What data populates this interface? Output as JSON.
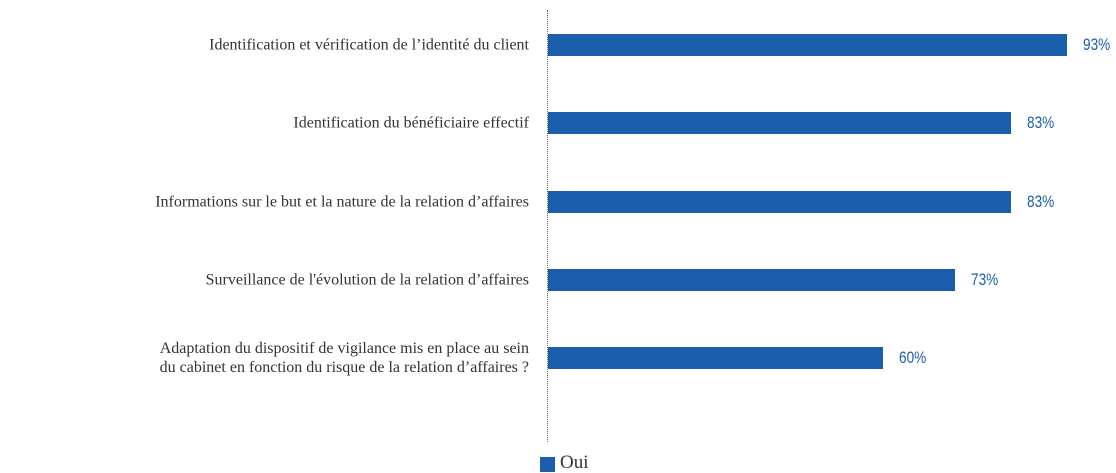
{
  "chart_data": {
    "type": "hbar",
    "categories": [
      "Identification et vérification de l’identité du client",
      "Identification du bénéficiaire effectif",
      "Informations sur le but et la nature de la relation d’affaires",
      "Surveillance de l'évolution de la relation d’affaires",
      "Adaptation du dispositif de vigilance mis en place au sein\ndu cabinet en fonction du risque de la relation d’affaires ?"
    ],
    "series": [
      {
        "name": "Oui",
        "color": "#1b5eab",
        "values": [
          93,
          83,
          83,
          73,
          60
        ],
        "value_labels": [
          "93%",
          "83%",
          "83%",
          "73%",
          "60%"
        ]
      }
    ],
    "xlim": [
      0,
      100
    ]
  }
}
